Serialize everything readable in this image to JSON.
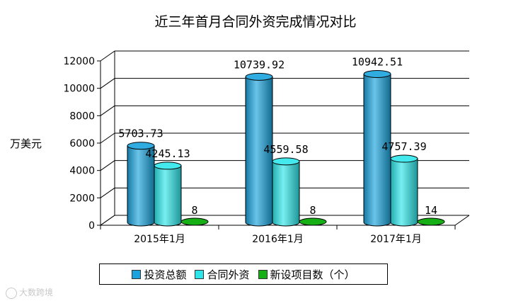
{
  "chart_data": {
    "type": "bar",
    "title": "近三年首月合同外资完成情况对比",
    "ylabel": "万美元",
    "xlabel": "",
    "ylim": [
      0,
      12000
    ],
    "yticks": [
      "0",
      "2000",
      "4000",
      "6000",
      "8000",
      "10000",
      "12000"
    ],
    "categories": [
      "2015年1月",
      "2016年1月",
      "2017年1月"
    ],
    "series": [
      {
        "name": "投资总额",
        "values": [
          5703.73,
          10739.92,
          10942.51
        ],
        "labels": [
          "5703.73",
          "10739.92",
          "10942.51"
        ],
        "color": "#1aa3dc"
      },
      {
        "name": "合同外资",
        "values": [
          4245.13,
          4559.58,
          4757.39
        ],
        "labels": [
          "4245.13",
          "4559.58",
          "4757.39"
        ],
        "color": "#2ee6ea"
      },
      {
        "name": "新设项目数（个）",
        "values": [
          8,
          8,
          14
        ],
        "labels": [
          "8",
          "8",
          "14"
        ],
        "color": "#16b016"
      }
    ],
    "grid": true,
    "legend_position": "bottom"
  },
  "watermark": "大数跨境"
}
